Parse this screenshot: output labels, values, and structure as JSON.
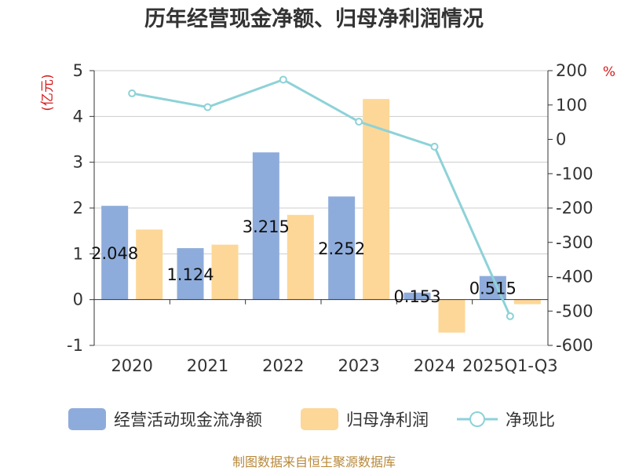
{
  "title": "历年经营现金净额、归母净利润情况",
  "left_unit": "(亿元)",
  "right_unit": "%",
  "source": "制图数据来自恒生聚源数据库",
  "colors": {
    "cash": "#8eacdb",
    "profit": "#fdd797",
    "ratio": "#8dd2d8",
    "grid": "#cccccc",
    "axis": "#333333"
  },
  "chart_data": {
    "type": "bar",
    "categories": [
      "2020",
      "2021",
      "2022",
      "2023",
      "2024",
      "2025Q1-Q3"
    ],
    "series": [
      {
        "name": "经营活动现金流净额",
        "kind": "bar",
        "axis": "left",
        "values": [
          2.048,
          1.124,
          3.215,
          2.252,
          0.153,
          0.515
        ],
        "labels": [
          "2.048",
          "1.124",
          "3.215",
          "2.252",
          "0.153",
          "0.515"
        ]
      },
      {
        "name": "归母净利润",
        "kind": "bar",
        "axis": "left",
        "values": [
          1.53,
          1.2,
          1.85,
          4.38,
          -0.72,
          -0.1
        ]
      },
      {
        "name": "净现比",
        "kind": "line",
        "axis": "right",
        "values": [
          133.9,
          93.7,
          173.8,
          51.4,
          -21.3,
          -515
        ]
      }
    ],
    "y_left": {
      "min": -1,
      "max": 5,
      "ticks": [
        "-1",
        "0",
        "1",
        "2",
        "3",
        "4",
        "5"
      ]
    },
    "y_right": {
      "min": -600,
      "max": 200,
      "ticks": [
        "-600",
        "-500",
        "-400",
        "-300",
        "-200",
        "-100",
        "0",
        "100",
        "200"
      ]
    },
    "grid": true,
    "legend": "bottom"
  }
}
